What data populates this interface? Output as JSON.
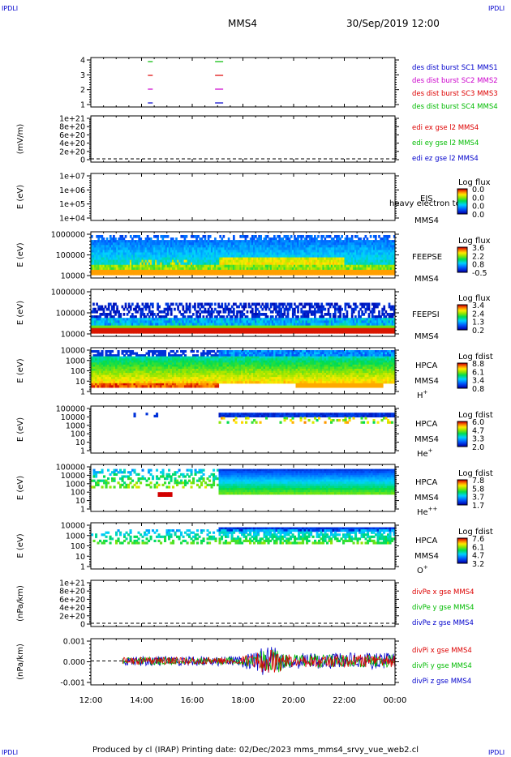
{
  "header": {
    "corner_label": "IPDLI",
    "spacecraft": "MMS4",
    "date": "30/Sep/2019 12:00"
  },
  "footer": {
    "text": "Produced by cl (IRAP)   Printing date: 02/Dec/2023   mms_mms4_srvy_vue_web2.cl"
  },
  "colors": {
    "red": "#dd0000",
    "green": "#00bb00",
    "blue": "#0000cc",
    "magenta": "#cc00cc"
  },
  "chart_data": {
    "type": "multi-panel time series",
    "x_ticks": [
      "12:00",
      "14:00",
      "16:00",
      "18:00",
      "20:00",
      "22:00",
      "00:00"
    ],
    "xlim_hours": [
      12,
      24
    ],
    "panels": [
      {
        "id": "burst",
        "ylabel": "",
        "yticks": [
          "4",
          "3",
          "2",
          "1"
        ],
        "labels": [
          {
            "text": "des dist burst SC1 MMS1",
            "color": "#0000cc"
          },
          {
            "text": "des dist burst SC2 MMS2",
            "color": "#cc00cc"
          },
          {
            "text": "des dist burst SC3 MMS3",
            "color": "#dd0000"
          },
          {
            "text": "des dist burst SC4 MMS4",
            "color": "#00bb00"
          }
        ],
        "bursts_hours": [
          14.25,
          16.9
        ]
      },
      {
        "id": "edi",
        "ylabel": "(mV/m)",
        "yticks": [
          "1e+21",
          "8e+20",
          "6e+20",
          "4e+20",
          "2e+20",
          "0"
        ],
        "labels": [
          {
            "text": "edi ex gse l2 MMS4",
            "color": "#dd0000"
          },
          {
            "text": "edi ey gse l2 MMS4",
            "color": "#00bb00"
          },
          {
            "text": "edi ez gse l2 MMS4",
            "color": "#0000cc"
          }
        ]
      },
      {
        "id": "eis",
        "ylabel": "E (eV)",
        "yticks": [
          "1e+07",
          "1e+06",
          "1e+05",
          "1e+04"
        ],
        "labels": [
          {
            "text": "EIS",
            "color": "#000000"
          },
          {
            "text": "MMS4",
            "color": "#000000"
          }
        ],
        "overlay_text": "heavy electron to",
        "colorbar": {
          "title": "Log flux",
          "ticks": [
            "0.0",
            "0.0",
            "0.0",
            "0.0"
          ]
        }
      },
      {
        "id": "feepse",
        "ylabel": "E (eV)",
        "yticks": [
          "1000000",
          "100000",
          "10000"
        ],
        "labels": [
          {
            "text": "FEEPSE",
            "color": "#000000"
          },
          {
            "text": "MMS4",
            "color": "#000000"
          }
        ],
        "colorbar": {
          "title": "Log flux",
          "ticks": [
            "3.6",
            "2.2",
            "0.8",
            "-0.5"
          ]
        }
      },
      {
        "id": "feepsi",
        "ylabel": "E (eV)",
        "yticks": [
          "1000000",
          "100000",
          "10000"
        ],
        "labels": [
          {
            "text": "FEEPSI",
            "color": "#000000"
          },
          {
            "text": "MMS4",
            "color": "#000000"
          }
        ],
        "colorbar": {
          "title": "Log flux",
          "ticks": [
            "3.4",
            "2.4",
            "1.3",
            "0.2"
          ]
        }
      },
      {
        "id": "hpca_h",
        "ylabel": "E (eV)",
        "yticks": [
          "10000",
          "1000",
          "100",
          "10",
          "1"
        ],
        "labels": [
          {
            "text": "HPCA",
            "color": "#000000"
          },
          {
            "text": "MMS4",
            "color": "#000000"
          },
          {
            "text": "H+",
            "color": "#000000"
          }
        ],
        "colorbar": {
          "title": "Log fdist",
          "ticks": [
            "8.8",
            "6.1",
            "3.4",
            "0.8"
          ]
        }
      },
      {
        "id": "hpca_he",
        "ylabel": "E (eV)",
        "yticks": [
          "100000",
          "10000",
          "1000",
          "100",
          "10",
          "1"
        ],
        "labels": [
          {
            "text": "HPCA",
            "color": "#000000"
          },
          {
            "text": "MMS4",
            "color": "#000000"
          },
          {
            "text": "He+",
            "color": "#000000"
          }
        ],
        "colorbar": {
          "title": "Log fdist",
          "ticks": [
            "6.0",
            "4.7",
            "3.3",
            "2.0"
          ]
        }
      },
      {
        "id": "hpca_he2",
        "ylabel": "E (eV)",
        "yticks": [
          "100000",
          "10000",
          "1000",
          "100",
          "10",
          "1"
        ],
        "labels": [
          {
            "text": "HPCA",
            "color": "#000000"
          },
          {
            "text": "MMS4",
            "color": "#000000"
          },
          {
            "text": "He++",
            "color": "#000000"
          }
        ],
        "colorbar": {
          "title": "Log fdist",
          "ticks": [
            "7.8",
            "5.8",
            "3.7",
            "1.7"
          ]
        }
      },
      {
        "id": "hpca_o",
        "ylabel": "E (eV)",
        "yticks": [
          "10000",
          "1000",
          "100",
          "10",
          "1"
        ],
        "labels": [
          {
            "text": "HPCA",
            "color": "#000000"
          },
          {
            "text": "MMS4",
            "color": "#000000"
          },
          {
            "text": "O+",
            "color": "#000000"
          }
        ],
        "colorbar": {
          "title": "Log fdist",
          "ticks": [
            "7.6",
            "6.1",
            "4.7",
            "3.2"
          ]
        }
      },
      {
        "id": "divpe",
        "ylabel": "(nPa/km)",
        "yticks": [
          "1e+21",
          "8e+20",
          "6e+20",
          "4e+20",
          "2e+20",
          "0"
        ],
        "labels": [
          {
            "text": "divPe x gse MMS4",
            "color": "#dd0000"
          },
          {
            "text": "divPe y gse MMS4",
            "color": "#00bb00"
          },
          {
            "text": "divPe z gse MMS4",
            "color": "#0000cc"
          }
        ]
      },
      {
        "id": "divpi",
        "ylabel": "(nPa/km)",
        "yticks": [
          "0.001",
          "0.000",
          "-0.001"
        ],
        "labels": [
          {
            "text": "divPi x gse MMS4",
            "color": "#dd0000"
          },
          {
            "text": "divPi y gse MMS4",
            "color": "#00bb00"
          },
          {
            "text": "divPi z gse MMS4",
            "color": "#0000cc"
          }
        ],
        "data_start_hours": 13.25
      }
    ]
  }
}
